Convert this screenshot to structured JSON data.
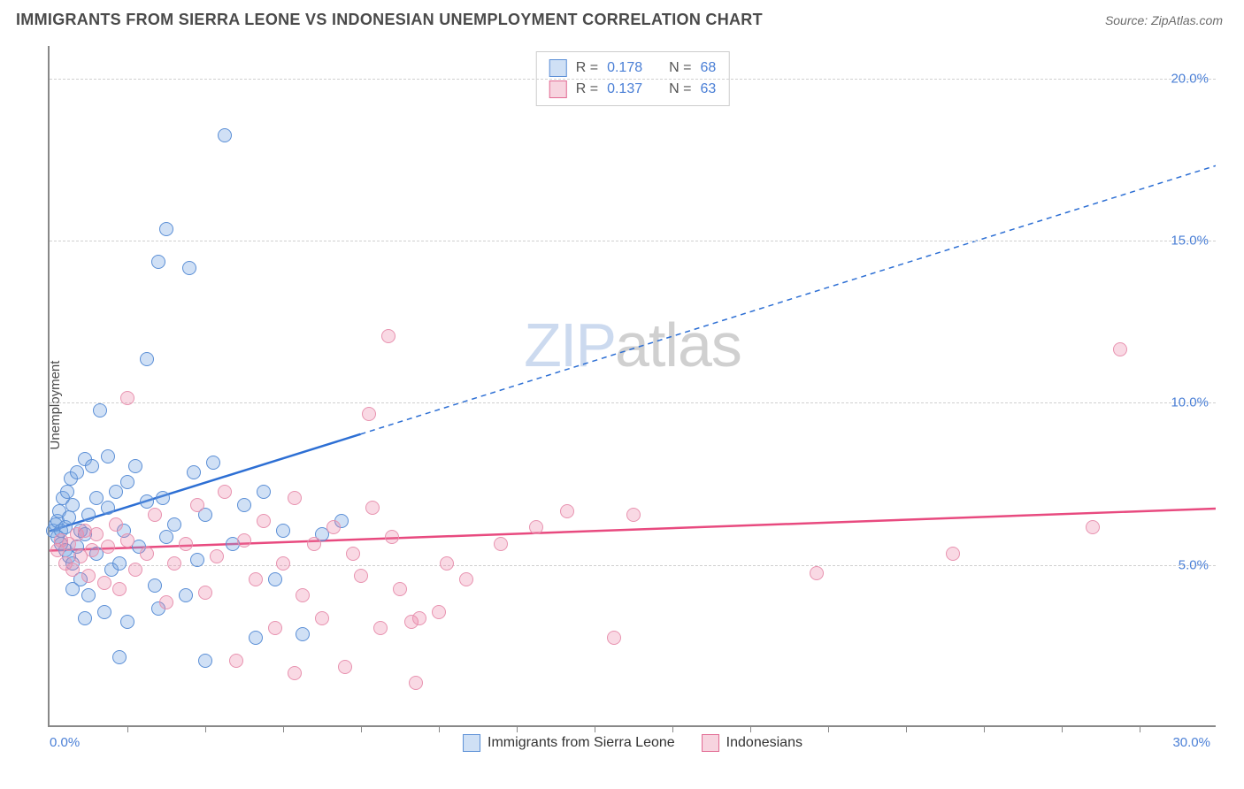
{
  "header": {
    "title": "IMMIGRANTS FROM SIERRA LEONE VS INDONESIAN UNEMPLOYMENT CORRELATION CHART",
    "source_prefix": "Source: ",
    "source_name": "ZipAtlas.com"
  },
  "chart": {
    "type": "scatter",
    "ylabel": "Unemployment",
    "xlim": [
      0,
      30
    ],
    "ylim": [
      0,
      21
    ],
    "background_color": "#ffffff",
    "grid_color": "#d0d0d0",
    "axis_color": "#888888",
    "tick_label_color": "#4a7fd6",
    "yticks": [
      {
        "v": 5.0,
        "label": "5.0%"
      },
      {
        "v": 10.0,
        "label": "10.0%"
      },
      {
        "v": 15.0,
        "label": "15.0%"
      },
      {
        "v": 20.0,
        "label": "20.0%"
      }
    ],
    "xticks_minor": [
      2,
      4,
      6,
      8,
      10,
      12,
      14,
      16,
      18,
      20,
      22,
      24,
      26,
      28
    ],
    "xtick_labels": [
      {
        "v": 0,
        "label": "0.0%",
        "pos": "left"
      },
      {
        "v": 30,
        "label": "30.0%",
        "pos": "right"
      }
    ],
    "marker_radius": 8,
    "marker_stroke_width": 1.5,
    "series": [
      {
        "name": "Immigrants from Sierra Leone",
        "fill_color": "rgba(120,165,225,0.35)",
        "stroke_color": "#5b8fd6",
        "swatch_fill": "#cfe0f5",
        "swatch_border": "#5b8fd6",
        "r_value": "0.178",
        "n_value": "68",
        "trend": {
          "color": "#2d6fd4",
          "solid_width": 2.5,
          "dash_pattern": "6,5",
          "x1": 0,
          "y1": 6.0,
          "x_solid_end": 8.0,
          "y_solid_end": 9.0,
          "x2": 30,
          "y2": 17.3
        },
        "points": [
          [
            0.1,
            6.0
          ],
          [
            0.15,
            6.2
          ],
          [
            0.2,
            5.8
          ],
          [
            0.2,
            6.3
          ],
          [
            0.25,
            6.6
          ],
          [
            0.3,
            5.6
          ],
          [
            0.3,
            6.0
          ],
          [
            0.35,
            7.0
          ],
          [
            0.4,
            5.4
          ],
          [
            0.4,
            6.1
          ],
          [
            0.45,
            7.2
          ],
          [
            0.5,
            5.2
          ],
          [
            0.5,
            6.4
          ],
          [
            0.55,
            7.6
          ],
          [
            0.6,
            5.0
          ],
          [
            0.6,
            6.8
          ],
          [
            0.7,
            5.5
          ],
          [
            0.7,
            7.8
          ],
          [
            0.8,
            4.5
          ],
          [
            0.8,
            6.0
          ],
          [
            0.9,
            8.2
          ],
          [
            0.9,
            5.9
          ],
          [
            1.0,
            6.5
          ],
          [
            1.0,
            4.0
          ],
          [
            1.1,
            8.0
          ],
          [
            1.2,
            5.3
          ],
          [
            1.2,
            7.0
          ],
          [
            1.3,
            9.7
          ],
          [
            1.4,
            3.5
          ],
          [
            1.5,
            6.7
          ],
          [
            1.5,
            8.3
          ],
          [
            1.6,
            4.8
          ],
          [
            1.7,
            7.2
          ],
          [
            1.8,
            5.0
          ],
          [
            1.9,
            6.0
          ],
          [
            2.0,
            7.5
          ],
          [
            2.0,
            3.2
          ],
          [
            2.2,
            8.0
          ],
          [
            2.3,
            5.5
          ],
          [
            2.5,
            11.3
          ],
          [
            2.5,
            6.9
          ],
          [
            2.7,
            4.3
          ],
          [
            2.8,
            14.3
          ],
          [
            2.9,
            7.0
          ],
          [
            3.0,
            5.8
          ],
          [
            3.0,
            15.3
          ],
          [
            3.2,
            6.2
          ],
          [
            3.5,
            4.0
          ],
          [
            3.6,
            14.1
          ],
          [
            3.7,
            7.8
          ],
          [
            3.8,
            5.1
          ],
          [
            4.0,
            6.5
          ],
          [
            4.0,
            2.0
          ],
          [
            4.2,
            8.1
          ],
          [
            4.5,
            18.2
          ],
          [
            4.7,
            5.6
          ],
          [
            5.0,
            6.8
          ],
          [
            5.3,
            2.7
          ],
          [
            5.5,
            7.2
          ],
          [
            5.8,
            4.5
          ],
          [
            6.0,
            6.0
          ],
          [
            6.5,
            2.8
          ],
          [
            7.0,
            5.9
          ],
          [
            7.5,
            6.3
          ],
          [
            1.8,
            2.1
          ],
          [
            2.8,
            3.6
          ],
          [
            0.9,
            3.3
          ],
          [
            0.6,
            4.2
          ]
        ]
      },
      {
        "name": "Indonesians",
        "fill_color": "rgba(235,130,165,0.3)",
        "stroke_color": "#e893b0",
        "swatch_fill": "#f7d4df",
        "swatch_border": "#e26a93",
        "r_value": "0.137",
        "n_value": "63",
        "trend": {
          "color": "#e84a7f",
          "solid_width": 2.5,
          "dash_pattern": null,
          "x1": 0,
          "y1": 5.4,
          "x_solid_end": 30,
          "y_solid_end": 6.7,
          "x2": 30,
          "y2": 6.7
        },
        "points": [
          [
            0.2,
            5.4
          ],
          [
            0.3,
            5.7
          ],
          [
            0.4,
            5.0
          ],
          [
            0.5,
            5.6
          ],
          [
            0.6,
            4.8
          ],
          [
            0.7,
            5.9
          ],
          [
            0.8,
            5.2
          ],
          [
            0.9,
            6.0
          ],
          [
            1.0,
            4.6
          ],
          [
            1.1,
            5.4
          ],
          [
            1.2,
            5.9
          ],
          [
            1.4,
            4.4
          ],
          [
            1.5,
            5.5
          ],
          [
            1.7,
            6.2
          ],
          [
            1.8,
            4.2
          ],
          [
            2.0,
            5.7
          ],
          [
            2.0,
            10.1
          ],
          [
            2.2,
            4.8
          ],
          [
            2.5,
            5.3
          ],
          [
            2.7,
            6.5
          ],
          [
            3.0,
            3.8
          ],
          [
            3.2,
            5.0
          ],
          [
            3.5,
            5.6
          ],
          [
            3.8,
            6.8
          ],
          [
            4.0,
            4.1
          ],
          [
            4.3,
            5.2
          ],
          [
            4.5,
            7.2
          ],
          [
            4.8,
            2.0
          ],
          [
            5.0,
            5.7
          ],
          [
            5.3,
            4.5
          ],
          [
            5.5,
            6.3
          ],
          [
            5.8,
            3.0
          ],
          [
            6.0,
            5.0
          ],
          [
            6.3,
            7.0
          ],
          [
            6.5,
            4.0
          ],
          [
            6.8,
            5.6
          ],
          [
            7.0,
            3.3
          ],
          [
            7.3,
            6.1
          ],
          [
            7.6,
            1.8
          ],
          [
            7.8,
            5.3
          ],
          [
            8.0,
            4.6
          ],
          [
            8.2,
            9.6
          ],
          [
            8.3,
            6.7
          ],
          [
            8.5,
            3.0
          ],
          [
            8.7,
            12.0
          ],
          [
            8.8,
            5.8
          ],
          [
            9.0,
            4.2
          ],
          [
            9.3,
            3.2
          ],
          [
            9.5,
            3.3
          ],
          [
            9.4,
            1.3
          ],
          [
            10.0,
            3.5
          ],
          [
            10.2,
            5.0
          ],
          [
            10.7,
            4.5
          ],
          [
            11.6,
            5.6
          ],
          [
            12.5,
            6.1
          ],
          [
            13.3,
            6.6
          ],
          [
            14.5,
            2.7
          ],
          [
            15.0,
            6.5
          ],
          [
            19.7,
            4.7
          ],
          [
            23.2,
            5.3
          ],
          [
            26.8,
            6.1
          ],
          [
            27.5,
            11.6
          ],
          [
            6.3,
            1.6
          ]
        ]
      }
    ]
  },
  "legend_top": {
    "r_label": "R =",
    "n_label": "N ="
  },
  "watermark": {
    "part1": "ZIP",
    "part2": "atlas"
  }
}
